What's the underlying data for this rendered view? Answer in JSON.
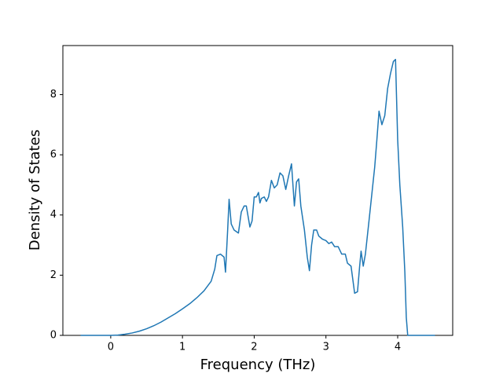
{
  "chart_data": {
    "type": "line",
    "xlabel": "Frequency (THz)",
    "ylabel": "Density of States",
    "xlim": [
      -0.667,
      4.767
    ],
    "ylim": [
      0,
      9.63
    ],
    "xticks": [
      0,
      1,
      2,
      3,
      4
    ],
    "yticks": [
      0,
      2,
      4,
      6,
      8
    ],
    "series": [
      {
        "color": "#1f77b4",
        "x": [
          -0.42,
          -0.2,
          0,
          0.1,
          0.2,
          0.3,
          0.4,
          0.5,
          0.6,
          0.7,
          0.8,
          0.9,
          1.0,
          1.1,
          1.2,
          1.3,
          1.4,
          1.45,
          1.48,
          1.53,
          1.58,
          1.6,
          1.63,
          1.65,
          1.68,
          1.72,
          1.78,
          1.82,
          1.86,
          1.89,
          1.94,
          1.97,
          2.0,
          2.03,
          2.06,
          2.08,
          2.1,
          2.14,
          2.17,
          2.2,
          2.24,
          2.28,
          2.32,
          2.36,
          2.4,
          2.44,
          2.48,
          2.52,
          2.56,
          2.59,
          2.62,
          2.65,
          2.7,
          2.74,
          2.77,
          2.8,
          2.83,
          2.87,
          2.9,
          2.95,
          3.0,
          3.04,
          3.08,
          3.12,
          3.17,
          3.22,
          3.27,
          3.3,
          3.35,
          3.4,
          3.44,
          3.47,
          3.49,
          3.52,
          3.55,
          3.6,
          3.64,
          3.68,
          3.71,
          3.74,
          3.78,
          3.82,
          3.86,
          3.9,
          3.94,
          3.97,
          4.0,
          4.03,
          4.07,
          4.1,
          4.12,
          4.14,
          4.2,
          4.52
        ],
        "values": [
          0,
          0,
          0,
          0.01,
          0.04,
          0.08,
          0.14,
          0.22,
          0.32,
          0.44,
          0.58,
          0.72,
          0.88,
          1.05,
          1.25,
          1.48,
          1.8,
          2.2,
          2.65,
          2.7,
          2.6,
          2.1,
          3.5,
          4.52,
          3.7,
          3.5,
          3.4,
          4.1,
          4.3,
          4.3,
          3.6,
          3.8,
          4.6,
          4.6,
          4.75,
          4.4,
          4.55,
          4.6,
          4.45,
          4.6,
          5.15,
          4.9,
          5.0,
          5.4,
          5.3,
          4.85,
          5.3,
          5.7,
          4.3,
          5.1,
          5.2,
          4.3,
          3.5,
          2.6,
          2.15,
          3.0,
          3.5,
          3.5,
          3.3,
          3.2,
          3.15,
          3.05,
          3.1,
          2.95,
          2.95,
          2.7,
          2.7,
          2.4,
          2.3,
          1.4,
          1.45,
          2.3,
          2.8,
          2.3,
          2.7,
          3.8,
          4.7,
          5.6,
          6.5,
          7.45,
          7.0,
          7.3,
          8.2,
          8.7,
          9.1,
          9.17,
          6.5,
          5.0,
          3.6,
          2.1,
          0.6,
          0,
          0,
          0
        ]
      }
    ]
  }
}
